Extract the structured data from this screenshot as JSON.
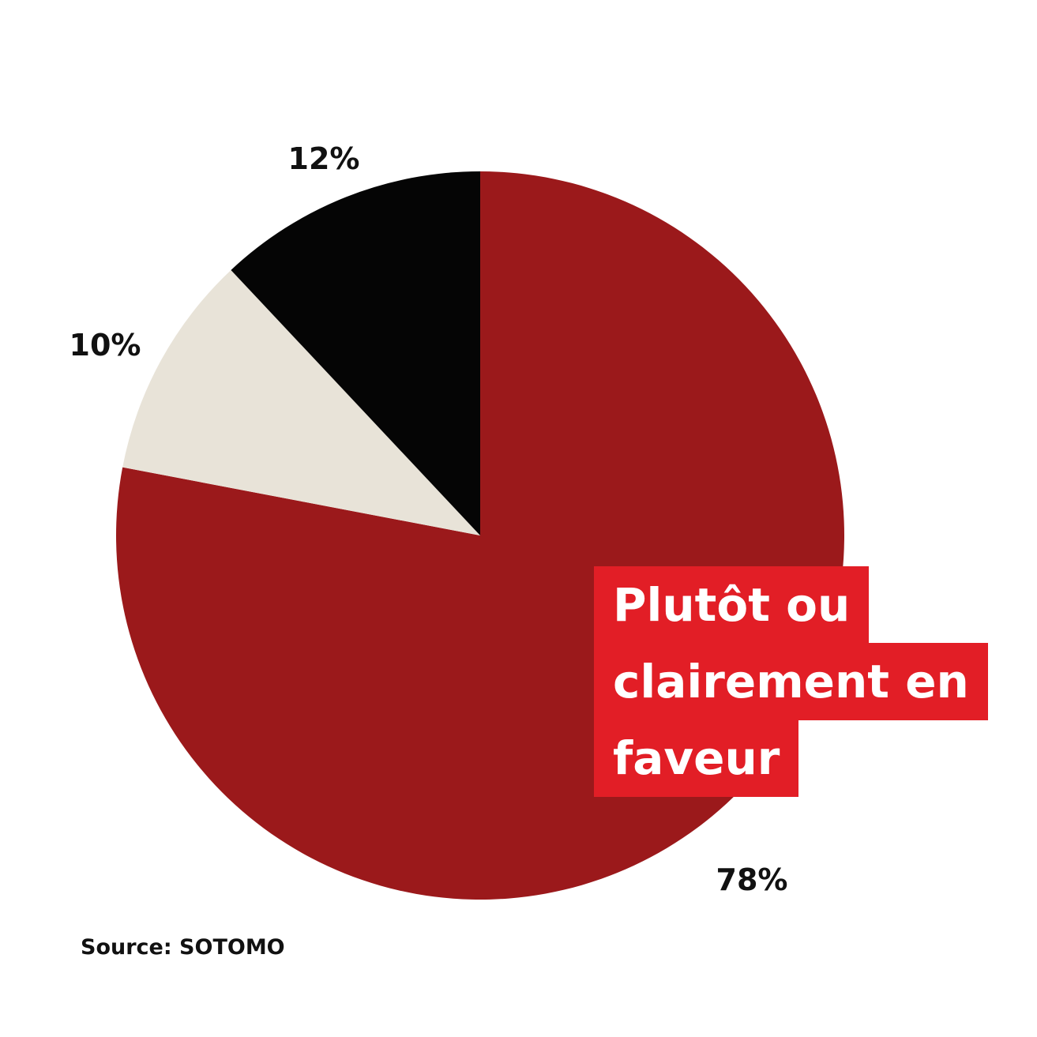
{
  "chart_data": {
    "type": "pie",
    "slices": [
      {
        "value": 78,
        "label": "78%",
        "color": "#9b191b"
      },
      {
        "value": 10,
        "label": "10%",
        "color": "#e8e3d8"
      },
      {
        "value": 12,
        "label": "12%",
        "color": "#050505"
      }
    ],
    "callout_lines": [
      "Plutôt ou",
      "clairement en",
      "faveur"
    ],
    "callout_color": "#e21e26",
    "source": "Source: SOTOMO"
  }
}
